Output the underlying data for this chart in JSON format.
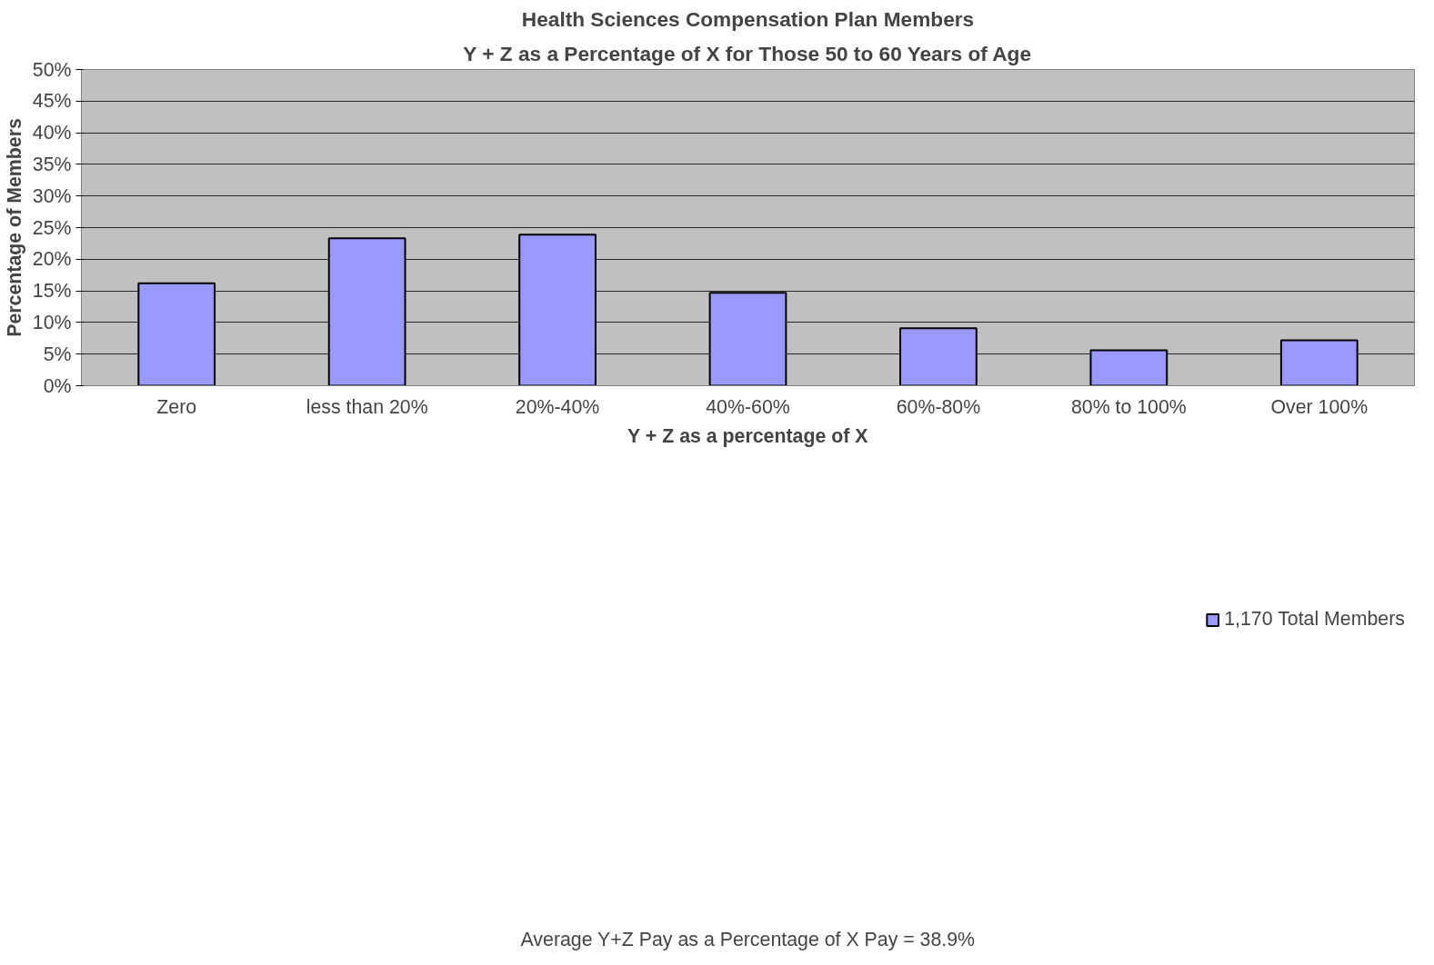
{
  "chart_data": {
    "type": "bar",
    "title": "Health Sciences Compensation Plan Members",
    "subtitle": "Y + Z as a Percentage of X for Those 50 to 60 Years of Age",
    "xlabel": "Y + Z as a percentage of X",
    "ylabel": "Percentage of Members",
    "categories": [
      "Zero",
      "less than 20%",
      "20%-40%",
      "40%-60%",
      "60%-80%",
      "80% to 100%",
      "Over 100%"
    ],
    "series": [
      {
        "name": "1,170 Total Members",
        "color": "#9999ff",
        "values": [
          16.2,
          23.3,
          23.9,
          14.7,
          9.1,
          5.6,
          7.2
        ]
      }
    ],
    "ylim": [
      0,
      50
    ],
    "yticks": [
      {
        "value": 0,
        "label": "0%"
      },
      {
        "value": 5,
        "label": "5%"
      },
      {
        "value": 10,
        "label": "10%"
      },
      {
        "value": 15,
        "label": "15%"
      },
      {
        "value": 20,
        "label": "20%"
      },
      {
        "value": 25,
        "label": "25%"
      },
      {
        "value": 30,
        "label": "30%"
      },
      {
        "value": 35,
        "label": "35%"
      },
      {
        "value": 40,
        "label": "40%"
      },
      {
        "value": 45,
        "label": "45%"
      },
      {
        "value": 50,
        "label": "50%"
      }
    ],
    "grid": "y",
    "legend": "bottom",
    "annotations": [
      "Average Y+Z Pay as a Percentage of X Pay = 38.9%"
    ]
  }
}
